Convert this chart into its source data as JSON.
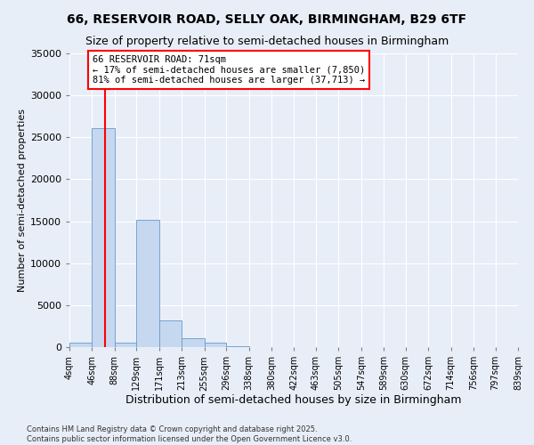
{
  "title": "66, RESERVOIR ROAD, SELLY OAK, BIRMINGHAM, B29 6TF",
  "subtitle": "Size of property relative to semi-detached houses in Birmingham",
  "xlabel": "Distribution of semi-detached houses by size in Birmingham",
  "ylabel": "Number of semi-detached properties",
  "property_label": "66 RESERVOIR ROAD: 71sqm",
  "pct_smaller": 17,
  "pct_larger": 81,
  "count_smaller": 7850,
  "count_larger": 37713,
  "bin_edges": [
    4,
    46,
    88,
    129,
    171,
    213,
    255,
    296,
    338,
    380,
    422,
    463,
    505,
    547,
    589,
    630,
    672,
    714,
    756,
    797,
    839
  ],
  "bin_labels": [
    "4sqm",
    "46sqm",
    "88sqm",
    "129sqm",
    "171sqm",
    "213sqm",
    "255sqm",
    "296sqm",
    "338sqm",
    "380sqm",
    "422sqm",
    "463sqm",
    "505sqm",
    "547sqm",
    "589sqm",
    "630sqm",
    "672sqm",
    "714sqm",
    "756sqm",
    "797sqm",
    "839sqm"
  ],
  "bar_heights": [
    500,
    26100,
    500,
    15200,
    3200,
    1100,
    500,
    100,
    50,
    25,
    15,
    10,
    5,
    5,
    5,
    5,
    5,
    5,
    5,
    5
  ],
  "bar_color": "#c5d8f0",
  "bar_edgecolor": "#6699cc",
  "vline_color": "red",
  "vline_x": 71,
  "background_color": "#e8eef8",
  "annotation_box_facecolor": "#ffffff",
  "annotation_box_edgecolor": "red",
  "ylim": [
    0,
    35000
  ],
  "yticks": [
    0,
    5000,
    10000,
    15000,
    20000,
    25000,
    30000,
    35000
  ],
  "footer": "Contains HM Land Registry data © Crown copyright and database right 2025.\nContains public sector information licensed under the Open Government Licence v3.0.",
  "title_fontsize": 10,
  "subtitle_fontsize": 9,
  "xlabel_fontsize": 9,
  "ylabel_fontsize": 8
}
